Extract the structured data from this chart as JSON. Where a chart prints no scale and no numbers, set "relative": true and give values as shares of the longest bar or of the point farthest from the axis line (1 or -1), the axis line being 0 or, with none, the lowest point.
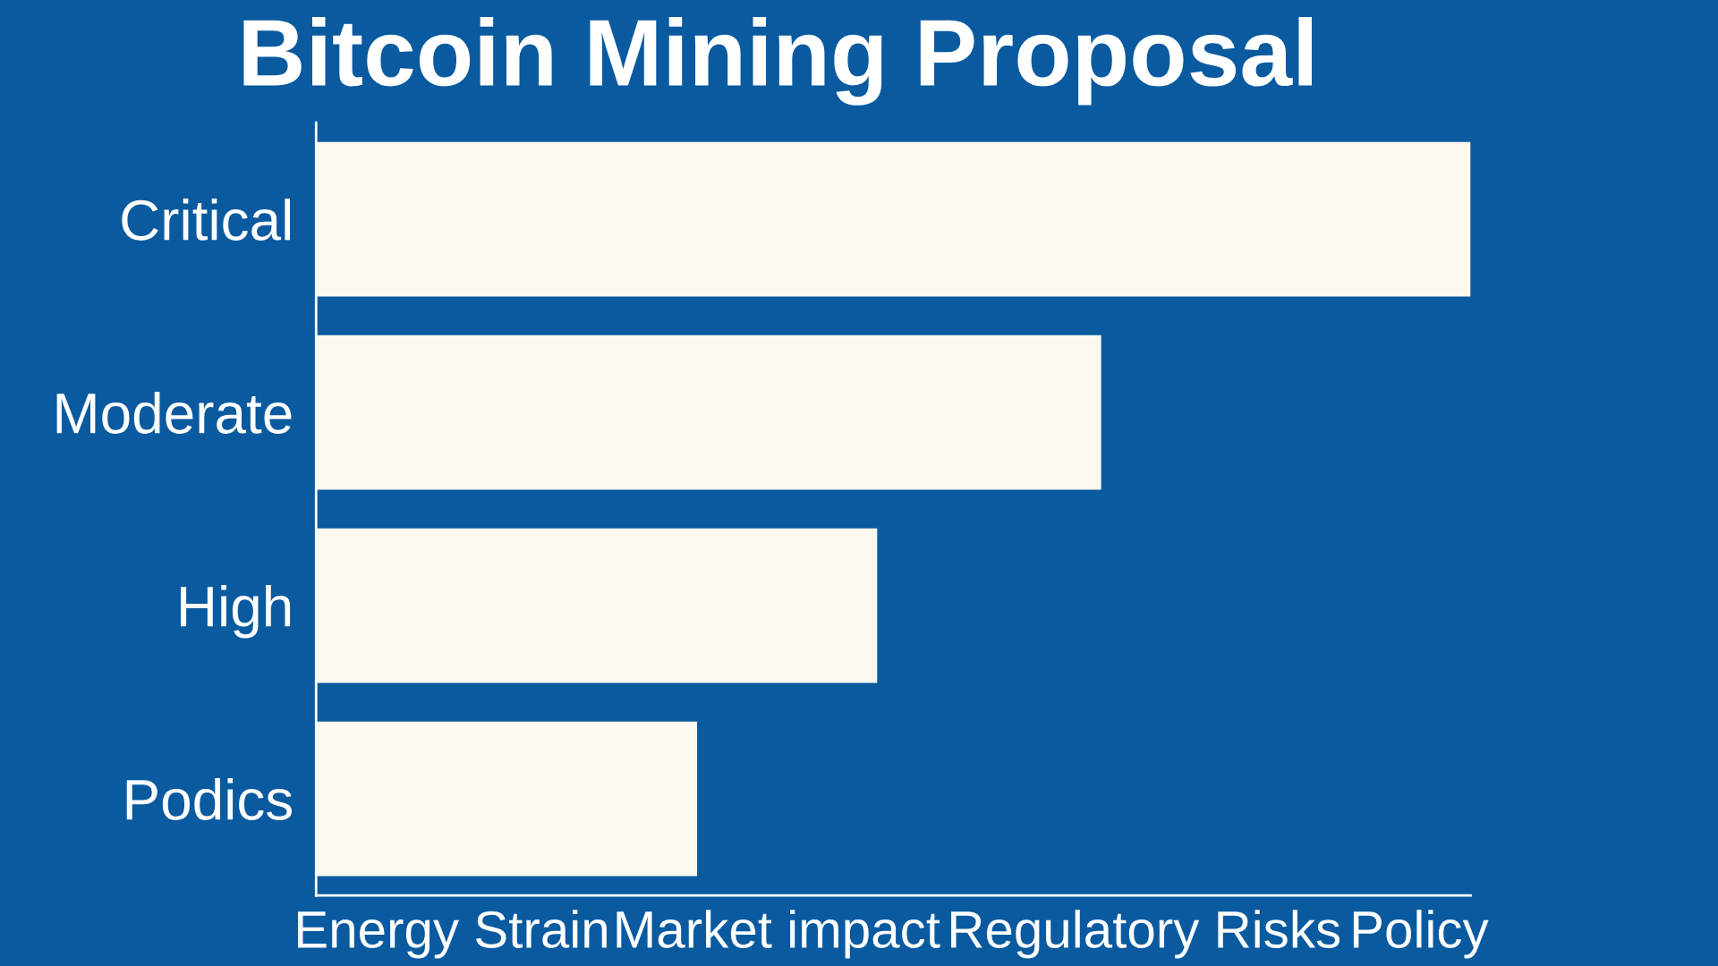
{
  "chart_data": {
    "type": "bar",
    "orientation": "horizontal",
    "relative": true,
    "title": "Bitcoin Mining Proposal",
    "categories": [
      "Critical",
      "Moderate",
      "High",
      "Podics"
    ],
    "values": [
      1,
      0.68,
      0.486,
      0.33
    ],
    "color": "#fdf9f0",
    "annotations": [
      "Energy Strain",
      "Market impact",
      "Regulatory Risks",
      "Policy"
    ],
    "grid": false,
    "legend": false
  }
}
